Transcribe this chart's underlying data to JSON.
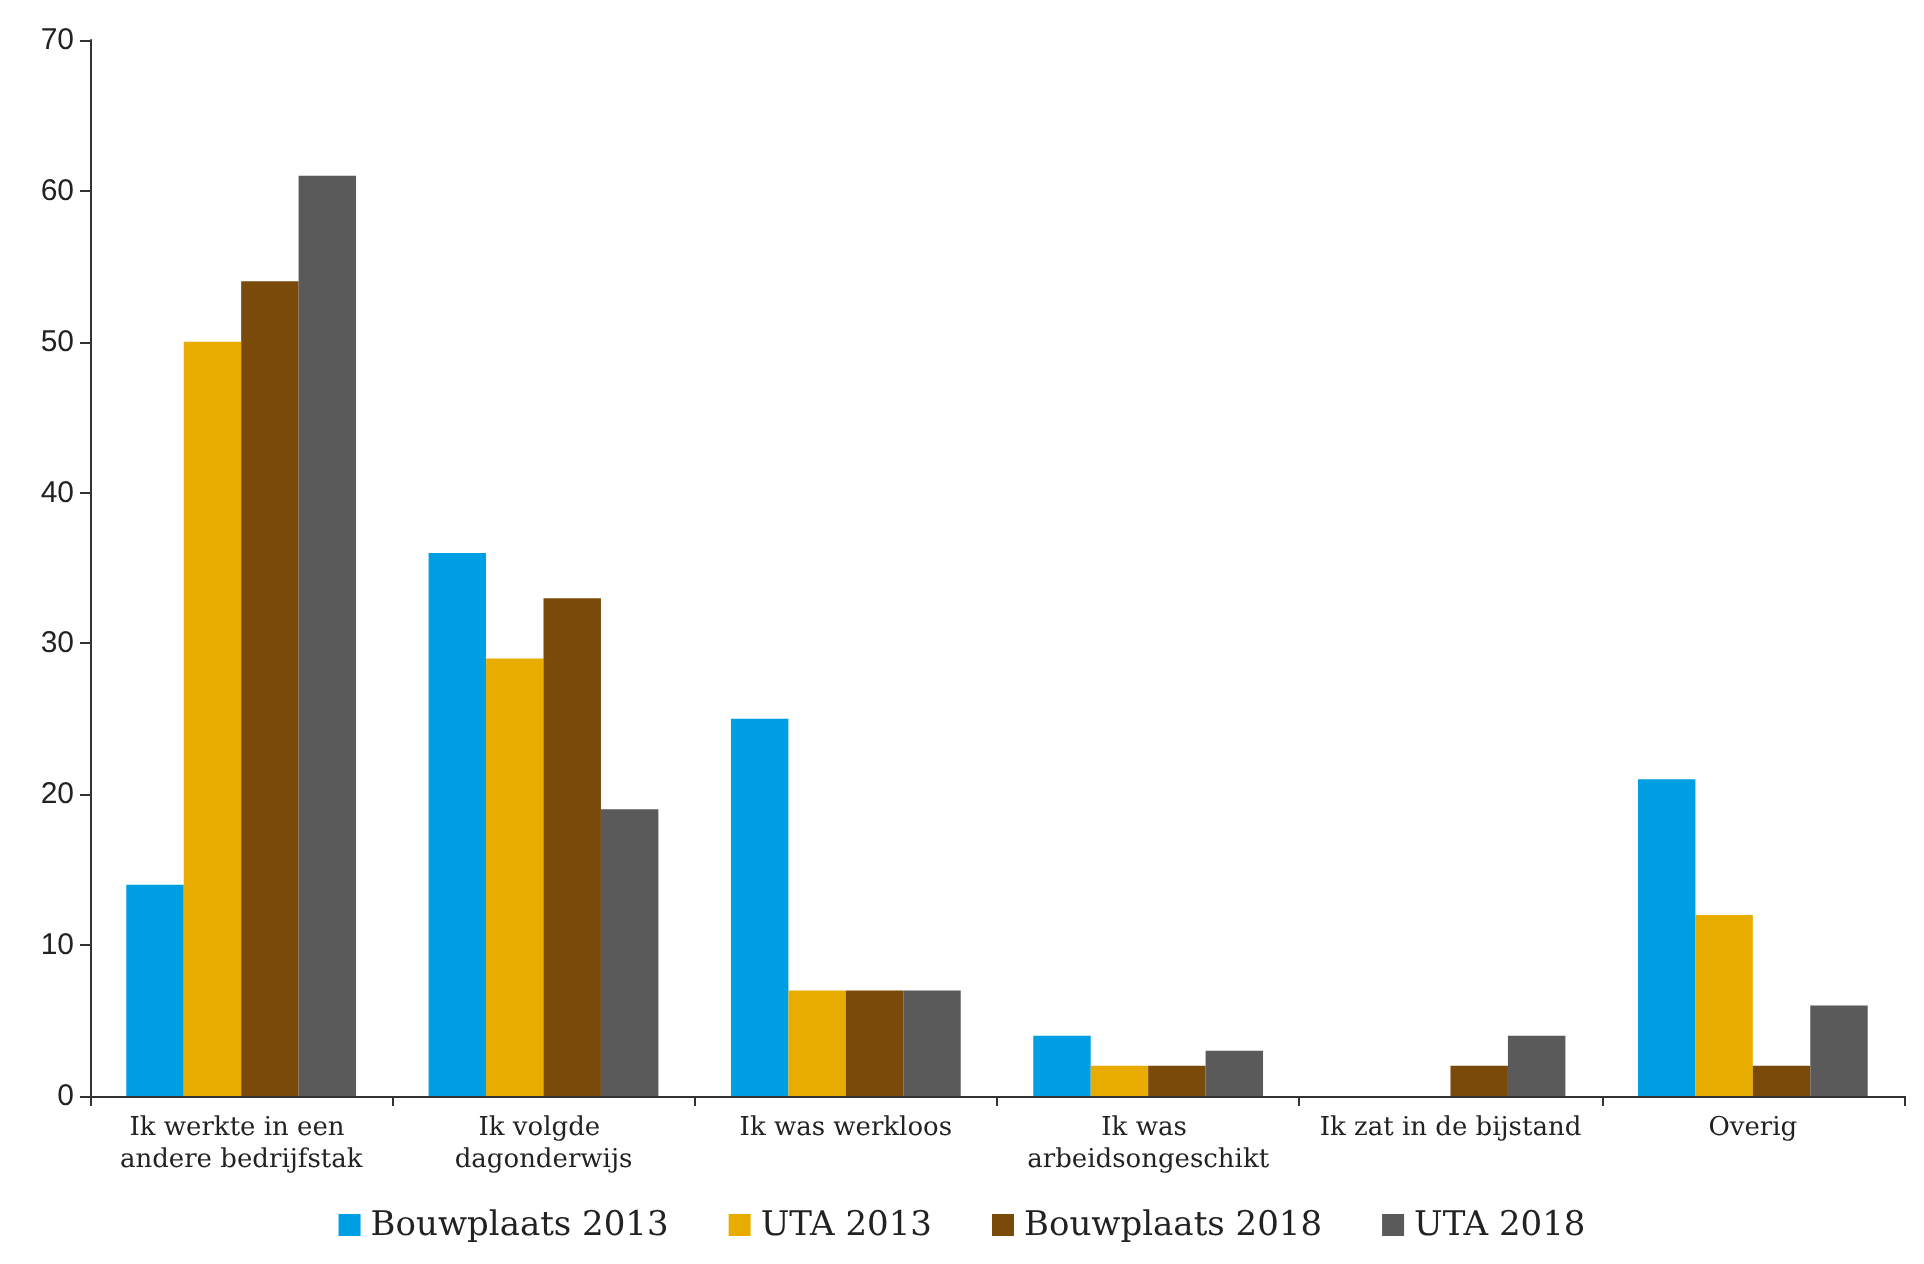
{
  "chart_data": {
    "type": "bar",
    "categories": [
      "Ik werkte in een andere bedrijfstak",
      "Ik volgde dagonderwijs",
      "Ik was werkloos",
      "Ik was arbeidsongeschikt",
      "Ik zat in de bijstand",
      "Overig"
    ],
    "series": [
      {
        "name": "Bouwplaats 2013",
        "color": "#009fe3",
        "values": [
          14,
          36,
          25,
          4,
          0,
          21
        ]
      },
      {
        "name": "UTA 2013",
        "color": "#e8ac00",
        "values": [
          50,
          29,
          7,
          2,
          0,
          12
        ]
      },
      {
        "name": "Bouwplaats 2018",
        "color": "#7a4a0a",
        "values": [
          54,
          33,
          7,
          2,
          2,
          2
        ]
      },
      {
        "name": "UTA 2018",
        "color": "#5a5a5a",
        "values": [
          61,
          19,
          7,
          3,
          4,
          6
        ]
      }
    ],
    "ylim": [
      0,
      70
    ],
    "yticks": [
      0,
      10,
      20,
      30,
      40,
      50,
      60,
      70
    ],
    "grid": false,
    "legend": "bottom"
  }
}
